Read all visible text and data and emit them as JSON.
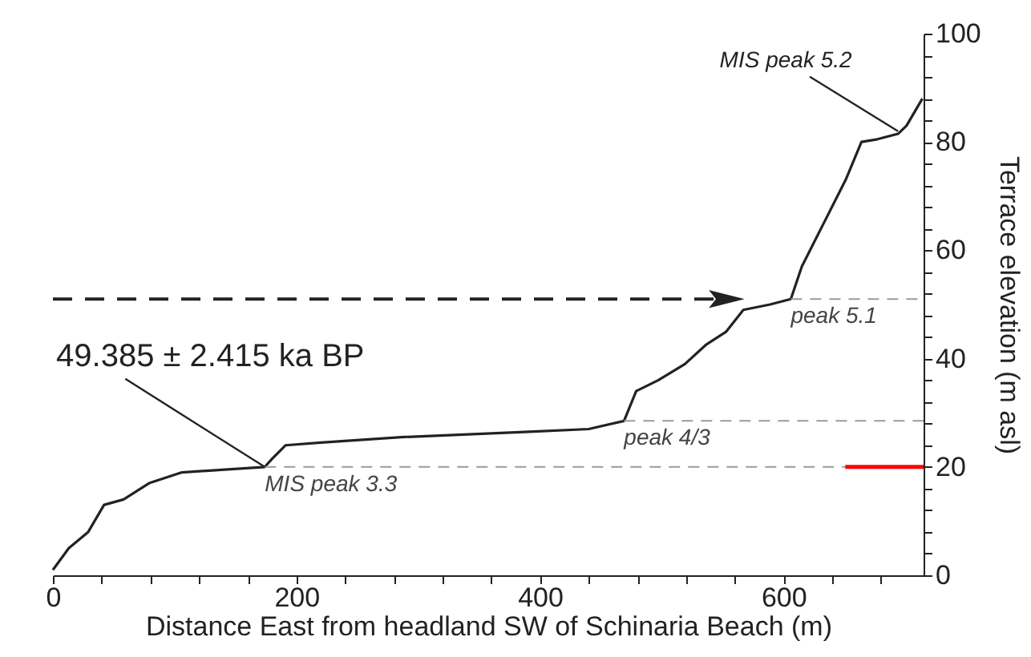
{
  "chart_data": {
    "type": "line",
    "xlabel": "Distance East from headland SW of Schinaria Beach (m)",
    "ylabel": "Terrace elevation (m asl)",
    "x": [
      0,
      13,
      29,
      42,
      58,
      79,
      106,
      141,
      174,
      180,
      191,
      220,
      286,
      391,
      440,
      469,
      479,
      497,
      519,
      536,
      553,
      567,
      589,
      606,
      615,
      633,
      651,
      664,
      677,
      694,
      701,
      714
    ],
    "series": [
      {
        "color": "#222222",
        "values": [
          1,
          5,
          8,
          13,
          14,
          17,
          19,
          19.5,
          20,
          21.5,
          24,
          24.5,
          25.5,
          26.5,
          27,
          28.5,
          34,
          36,
          39,
          42.5,
          45,
          49,
          50,
          51,
          57,
          65,
          73,
          80,
          80.5,
          81.5,
          83,
          88
        ]
      }
    ],
    "xlim": [
      0,
      715
    ],
    "xticks": [
      0,
      {
        "value": 40,
        "label": null
      },
      {
        "value": 80,
        "label": null
      },
      {
        "value": 120,
        "label": null
      },
      {
        "value": 160,
        "label": null
      },
      200,
      {
        "value": 240,
        "label": null
      },
      {
        "value": 280,
        "label": null
      },
      {
        "value": 320,
        "label": null
      },
      {
        "value": 360,
        "label": null
      },
      400,
      {
        "value": 440,
        "label": null
      },
      {
        "value": 480,
        "label": null
      },
      {
        "value": 520,
        "label": null
      },
      {
        "value": 560,
        "label": null
      },
      600,
      {
        "value": 640,
        "label": null
      },
      {
        "value": 680,
        "label": null
      }
    ],
    "ylim": [
      0,
      100
    ],
    "yticks": [
      0,
      {
        "value": 4,
        "label": null
      },
      {
        "value": 8,
        "label": null
      },
      {
        "value": 12,
        "label": null
      },
      {
        "value": 16,
        "label": null
      },
      20,
      {
        "value": 24,
        "label": null
      },
      {
        "value": 28,
        "label": null
      },
      {
        "value": 32,
        "label": null
      },
      {
        "value": 36,
        "label": null
      },
      40,
      {
        "value": 44,
        "label": null
      },
      {
        "value": 48,
        "label": null
      },
      {
        "value": 52,
        "label": null
      },
      {
        "value": 56,
        "label": null
      },
      60,
      {
        "value": 64,
        "label": null
      },
      {
        "value": 68,
        "label": null
      },
      {
        "value": 72,
        "label": null
      },
      {
        "value": 76,
        "label": null
      },
      80,
      {
        "value": 84,
        "label": null
      },
      {
        "value": 88,
        "label": null
      },
      {
        "value": 92,
        "label": null
      },
      {
        "value": 96,
        "label": null
      },
      100
    ],
    "ref_lines": [
      {
        "axis": "y",
        "value": 20,
        "label": "MIS peak 3.3",
        "color": "#9a9a9a",
        "line_style": "dashed"
      },
      {
        "axis": "y",
        "value": 28.5,
        "label": "peak 4/3",
        "color": "#9a9a9a",
        "line_style": "dashed"
      },
      {
        "axis": "y",
        "value": 51,
        "label": "peak 5.1",
        "color": "#9a9a9a",
        "line_style": "dashed"
      },
      {
        "axis": "y",
        "value": 20,
        "color": "#ff0000",
        "line_style": "solid"
      }
    ],
    "annotations": [
      {
        "text": "49.385 ± 2.415 ka BP",
        "x": 174,
        "y": 20
      },
      {
        "text": "MIS peak 5.2",
        "x": 694,
        "y": 82
      }
    ],
    "grid": false,
    "marker": "none",
    "line_style": "solid"
  }
}
